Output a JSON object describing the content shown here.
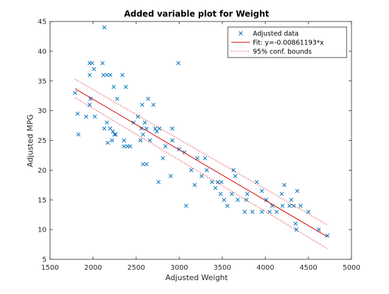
{
  "chart_data": {
    "type": "scatter",
    "title": "Added variable plot for Weight",
    "xlabel": "Adjusted Weight",
    "ylabel": "Adjusted MPG",
    "xlim": [
      1500,
      5000
    ],
    "ylim": [
      5,
      45
    ],
    "xticks": [
      1500,
      2000,
      2500,
      3000,
      3500,
      4000,
      4500,
      5000
    ],
    "yticks": [
      5,
      10,
      15,
      20,
      25,
      30,
      35,
      40,
      45
    ],
    "grid": false,
    "legend_position": "top-right",
    "colors": {
      "data": "#0072BD",
      "fit": "#D40000",
      "bounds": "#D40000"
    },
    "legend": [
      {
        "label": "Adjusted data",
        "style": "marker-x"
      },
      {
        "label": "Fit: y=-0.00861193*x",
        "style": "solid"
      },
      {
        "label": "95% conf. bounds",
        "style": "dotted"
      }
    ],
    "series": [
      {
        "name": "Adjusted data",
        "kind": "scatter",
        "marker": "x",
        "points": [
          [
            1790,
            33
          ],
          [
            1820,
            29.5
          ],
          [
            1830,
            26
          ],
          [
            1920,
            29
          ],
          [
            1960,
            38
          ],
          [
            1960,
            36
          ],
          [
            1970,
            32
          ],
          [
            1960,
            31
          ],
          [
            1990,
            38
          ],
          [
            2010,
            37
          ],
          [
            2020,
            29
          ],
          [
            2110,
            38
          ],
          [
            2120,
            36
          ],
          [
            2130,
            44
          ],
          [
            2130,
            27
          ],
          [
            2160,
            36
          ],
          [
            2160,
            28
          ],
          [
            2170,
            24.6
          ],
          [
            2200,
            36
          ],
          [
            2200,
            27
          ],
          [
            2220,
            25
          ],
          [
            2230,
            26.5
          ],
          [
            2240,
            34
          ],
          [
            2250,
            26
          ],
          [
            2260,
            26
          ],
          [
            2280,
            32
          ],
          [
            2340,
            36
          ],
          [
            2360,
            25
          ],
          [
            2360,
            24
          ],
          [
            2380,
            34
          ],
          [
            2400,
            24
          ],
          [
            2430,
            24
          ],
          [
            2470,
            28
          ],
          [
            2520,
            29
          ],
          [
            2550,
            25
          ],
          [
            2560,
            27
          ],
          [
            2570,
            31
          ],
          [
            2580,
            21
          ],
          [
            2580,
            26
          ],
          [
            2600,
            28
          ],
          [
            2620,
            21
          ],
          [
            2620,
            27
          ],
          [
            2640,
            32
          ],
          [
            2660,
            25
          ],
          [
            2700,
            31
          ],
          [
            2720,
            27
          ],
          [
            2740,
            26.5
          ],
          [
            2760,
            18
          ],
          [
            2770,
            27
          ],
          [
            2810,
            22
          ],
          [
            2840,
            24
          ],
          [
            2900,
            19
          ],
          [
            2920,
            27
          ],
          [
            2920,
            25
          ],
          [
            2990,
            38
          ],
          [
            3000,
            23.5
          ],
          [
            3060,
            23
          ],
          [
            3080,
            14
          ],
          [
            3140,
            20
          ],
          [
            3180,
            17.5
          ],
          [
            3210,
            22
          ],
          [
            3260,
            19
          ],
          [
            3300,
            22
          ],
          [
            3320,
            20
          ],
          [
            3380,
            18
          ],
          [
            3420,
            17
          ],
          [
            3450,
            18
          ],
          [
            3480,
            16
          ],
          [
            3490,
            18
          ],
          [
            3520,
            15
          ],
          [
            3560,
            14
          ],
          [
            3610,
            16
          ],
          [
            3630,
            20
          ],
          [
            3650,
            19
          ],
          [
            3680,
            15
          ],
          [
            3760,
            13
          ],
          [
            3780,
            15
          ],
          [
            3790,
            16
          ],
          [
            3850,
            13
          ],
          [
            3900,
            18
          ],
          [
            3960,
            16.5
          ],
          [
            3960,
            13
          ],
          [
            4010,
            15
          ],
          [
            4050,
            13
          ],
          [
            4080,
            14
          ],
          [
            4130,
            13
          ],
          [
            4190,
            16
          ],
          [
            4200,
            14
          ],
          [
            4220,
            17.5
          ],
          [
            4280,
            14
          ],
          [
            4300,
            15
          ],
          [
            4330,
            14
          ],
          [
            4350,
            11
          ],
          [
            4360,
            10
          ],
          [
            4370,
            16.5
          ],
          [
            4410,
            14
          ],
          [
            4500,
            13
          ],
          [
            4620,
            10
          ],
          [
            4720,
            9
          ]
        ]
      },
      {
        "name": "Fit: y=-0.00861193*x",
        "kind": "line",
        "line_style": "solid",
        "points": [
          [
            1790,
            33.7
          ],
          [
            4720,
            8.8
          ]
        ]
      },
      {
        "name": "95% conf. bounds",
        "kind": "line",
        "line_style": "dotted",
        "points": [
          [
            1790,
            35.3
          ],
          [
            4720,
            10.8
          ]
        ]
      },
      {
        "name": "95% conf. bounds",
        "kind": "line",
        "line_style": "dotted",
        "points": [
          [
            1790,
            32.2
          ],
          [
            4720,
            6.8
          ]
        ]
      }
    ]
  }
}
